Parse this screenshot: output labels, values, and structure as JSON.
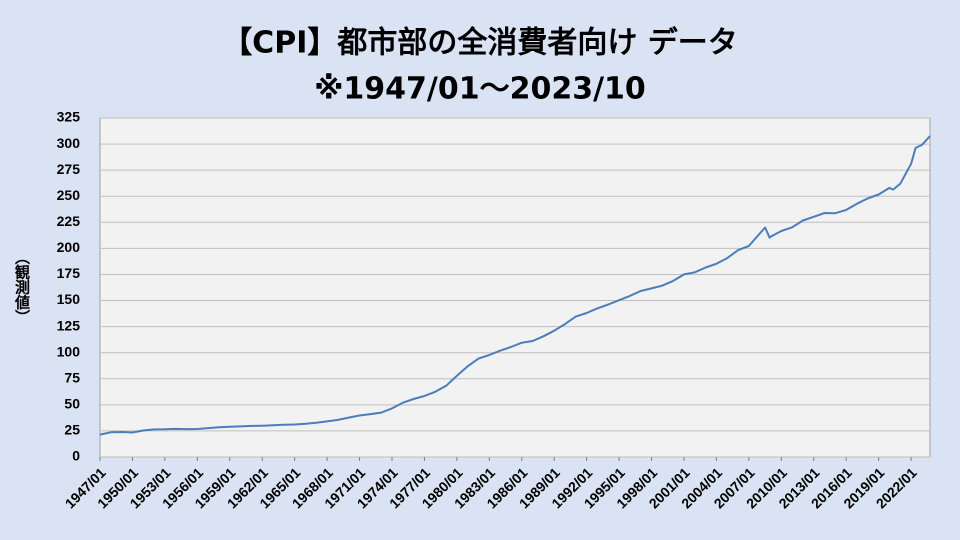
{
  "chart_data": {
    "type": "line",
    "title": "【CPI】都市部の全消費者向け データ",
    "subtitle": "※1947/01～2023/10",
    "y_label": "（観測値）",
    "x": [
      "1947/01",
      "1948/01",
      "1949/01",
      "1950/01",
      "1951/01",
      "1952/01",
      "1953/01",
      "1954/01",
      "1955/01",
      "1956/01",
      "1957/01",
      "1958/01",
      "1959/01",
      "1960/01",
      "1961/01",
      "1962/01",
      "1963/01",
      "1964/01",
      "1965/01",
      "1966/01",
      "1967/01",
      "1968/01",
      "1969/01",
      "1970/01",
      "1971/01",
      "1972/01",
      "1973/01",
      "1974/01",
      "1975/01",
      "1976/01",
      "1977/01",
      "1978/01",
      "1979/01",
      "1980/01",
      "1981/01",
      "1982/01",
      "1983/01",
      "1984/01",
      "1985/01",
      "1986/01",
      "1987/01",
      "1988/01",
      "1989/01",
      "1990/01",
      "1991/01",
      "1992/01",
      "1993/01",
      "1994/01",
      "1995/01",
      "1996/01",
      "1997/01",
      "1998/01",
      "1999/01",
      "2000/01",
      "2001/01",
      "2002/01",
      "2003/01",
      "2004/01",
      "2005/01",
      "2006/01",
      "2007/01",
      "2008/07",
      "2008/12",
      "2009/01",
      "2010/01",
      "2011/01",
      "2012/01",
      "2013/01",
      "2014/01",
      "2015/01",
      "2016/01",
      "2017/01",
      "2018/01",
      "2019/01",
      "2020/01",
      "2020/05",
      "2021/01",
      "2022/01",
      "2022/06",
      "2023/01",
      "2023/10"
    ],
    "series": [
      {
        "name": "CPI",
        "color": "#4a7ebb",
        "values": [
          21.5,
          23.7,
          24.0,
          23.5,
          25.4,
          26.5,
          26.6,
          26.9,
          26.7,
          26.8,
          27.7,
          28.6,
          29.0,
          29.3,
          29.8,
          30.0,
          30.4,
          30.9,
          31.2,
          31.8,
          32.9,
          34.1,
          35.6,
          37.8,
          39.8,
          41.1,
          42.6,
          46.6,
          52.1,
          55.6,
          58.5,
          62.5,
          68.3,
          77.8,
          87.0,
          94.3,
          97.8,
          101.9,
          105.5,
          109.6,
          111.2,
          115.7,
          121.1,
          127.4,
          134.6,
          138.1,
          142.6,
          146.2,
          150.3,
          154.4,
          159.1,
          161.6,
          164.3,
          168.8,
          175.1,
          177.1,
          181.7,
          185.2,
          190.7,
          198.3,
          202.4,
          220.0,
          210.2,
          211.1,
          216.7,
          220.2,
          226.7,
          230.3,
          233.9,
          233.7,
          236.9,
          242.8,
          247.9,
          251.7,
          258.0,
          256.4,
          262.0,
          281.1,
          296.3,
          299.2,
          307.7
        ]
      }
    ],
    "xlim": [
      "1947/01",
      "2023/10"
    ],
    "xticks": [
      "1947/01",
      "1950/01",
      "1953/01",
      "1956/01",
      "1959/01",
      "1962/01",
      "1965/01",
      "1968/01",
      "1971/01",
      "1974/01",
      "1977/01",
      "1980/01",
      "1983/01",
      "1986/01",
      "1989/01",
      "1992/01",
      "1995/01",
      "1998/01",
      "2001/01",
      "2004/01",
      "2007/01",
      "2010/01",
      "2013/01",
      "2016/01",
      "2019/01",
      "2022/01"
    ],
    "ylim": [
      0,
      325
    ],
    "yticks": [
      0,
      25,
      50,
      75,
      100,
      125,
      150,
      175,
      200,
      225,
      250,
      275,
      300,
      325
    ],
    "grid": true
  }
}
